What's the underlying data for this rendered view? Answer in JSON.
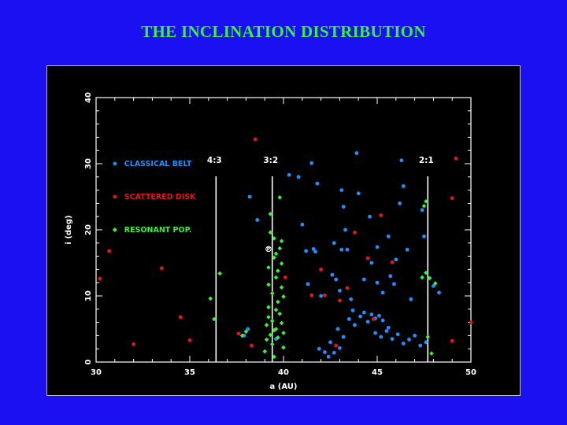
{
  "title": "THE INCLINATION DISTRIBUTION",
  "chart_data": {
    "type": "scatter",
    "xlabel": "a (AU)",
    "ylabel": "i (deg)",
    "xlim": [
      30,
      50
    ],
    "ylim": [
      0,
      40
    ],
    "xticks": [
      "30",
      "35",
      "40",
      "45",
      "50"
    ],
    "yticks": [
      "0",
      "10",
      "20",
      "30",
      "40"
    ],
    "grid": false,
    "legend_position": "left",
    "resonances": [
      {
        "label": "4:3",
        "a": 36.4
      },
      {
        "label": "3:2",
        "a": 39.4
      },
      {
        "label": "2:1",
        "a": 47.7
      }
    ],
    "pluto_marker": {
      "label": "P",
      "a": 39.2,
      "i": 17.1
    },
    "series": [
      {
        "name": "CLASSICAL BELT",
        "color": "#1e90ff",
        "marker": "circle",
        "points": [
          [
            31.0,
            30.0
          ],
          [
            37.9,
            4.0
          ],
          [
            38.1,
            5.0
          ],
          [
            38.2,
            25.0
          ],
          [
            38.6,
            21.5
          ],
          [
            39.6,
            3.5
          ],
          [
            40.3,
            28.3
          ],
          [
            40.8,
            28.0
          ],
          [
            41.0,
            20.8
          ],
          [
            41.2,
            16.8
          ],
          [
            41.3,
            11.8
          ],
          [
            41.5,
            30.1
          ],
          [
            41.6,
            17.1
          ],
          [
            41.7,
            16.7
          ],
          [
            41.8,
            27.0
          ],
          [
            42.0,
            10.0
          ],
          [
            41.9,
            2.0
          ],
          [
            42.2,
            1.5
          ],
          [
            42.5,
            3.0
          ],
          [
            42.6,
            13.2
          ],
          [
            42.7,
            18.0
          ],
          [
            42.8,
            12.5
          ],
          [
            42.9,
            5.0
          ],
          [
            43.0,
            10.8
          ],
          [
            43.1,
            26.0
          ],
          [
            43.2,
            23.5
          ],
          [
            43.3,
            20.0
          ],
          [
            43.1,
            17.0
          ],
          [
            43.4,
            17.0
          ],
          [
            43.6,
            9.5
          ],
          [
            43.9,
            31.6
          ],
          [
            44.0,
            25.5
          ],
          [
            44.3,
            12.5
          ],
          [
            44.6,
            22.0
          ],
          [
            44.7,
            15.0
          ],
          [
            45.0,
            17.4
          ],
          [
            45.0,
            12.0
          ],
          [
            45.3,
            10.5
          ],
          [
            45.6,
            19.0
          ],
          [
            45.7,
            13.0
          ],
          [
            45.9,
            11.8
          ],
          [
            46.0,
            15.5
          ],
          [
            46.2,
            24.0
          ],
          [
            46.3,
            30.5
          ],
          [
            46.4,
            26.6
          ],
          [
            46.6,
            17.0
          ],
          [
            46.8,
            9.5
          ],
          [
            47.0,
            4.0
          ],
          [
            47.3,
            2.5
          ],
          [
            47.4,
            23.0
          ],
          [
            47.5,
            19.0
          ],
          [
            47.6,
            3.0
          ],
          [
            48.0,
            11.5
          ],
          [
            48.3,
            10.5
          ],
          [
            44.9,
            4.4
          ],
          [
            45.2,
            3.8
          ],
          [
            45.5,
            4.7
          ],
          [
            45.8,
            3.5
          ],
          [
            46.1,
            4.2
          ],
          [
            46.4,
            2.8
          ],
          [
            46.7,
            3.4
          ],
          [
            42.4,
            0.8
          ],
          [
            42.7,
            1.4
          ],
          [
            43.0,
            2.1
          ],
          [
            43.2,
            3.8
          ],
          [
            43.5,
            6.5
          ],
          [
            43.7,
            7.8
          ],
          [
            43.8,
            5.6
          ],
          [
            44.1,
            6.9
          ],
          [
            44.3,
            7.5
          ],
          [
            44.5,
            6.1
          ],
          [
            44.7,
            7.2
          ],
          [
            44.9,
            6.6
          ],
          [
            45.1,
            7.0
          ],
          [
            45.3,
            6.3
          ],
          [
            45.6,
            5.2
          ]
        ]
      },
      {
        "name": "SCATTERED DISK",
        "color": "#e8131e",
        "marker": "circle",
        "points": [
          [
            30.2,
            12.6
          ],
          [
            30.7,
            16.8
          ],
          [
            32.0,
            2.7
          ],
          [
            33.5,
            14.2
          ],
          [
            34.5,
            6.8
          ],
          [
            35.0,
            3.3
          ],
          [
            37.6,
            4.3
          ],
          [
            38.3,
            2.5
          ],
          [
            38.5,
            33.7
          ],
          [
            40.1,
            12.8
          ],
          [
            41.5,
            10.1
          ],
          [
            42.0,
            14.0
          ],
          [
            42.2,
            10.1
          ],
          [
            43.0,
            9.3
          ],
          [
            43.4,
            11.2
          ],
          [
            43.8,
            19.6
          ],
          [
            44.5,
            15.7
          ],
          [
            44.8,
            6.5
          ],
          [
            45.2,
            22.2
          ],
          [
            45.8,
            15.1
          ],
          [
            49.0,
            24.8
          ],
          [
            49.2,
            30.8
          ],
          [
            49.0,
            3.2
          ],
          [
            50.0,
            6.0
          ],
          [
            42.8,
            2.5
          ]
        ]
      },
      {
        "name": "RESONANT POP.",
        "color": "#39f23a",
        "marker": "diamond",
        "points": [
          [
            36.1,
            9.6
          ],
          [
            36.3,
            6.5
          ],
          [
            36.6,
            13.4
          ],
          [
            37.8,
            4.0
          ],
          [
            38.0,
            4.6
          ],
          [
            39.0,
            1.6
          ],
          [
            39.1,
            3.4
          ],
          [
            39.1,
            5.6
          ],
          [
            39.2,
            8.3
          ],
          [
            39.2,
            11.7
          ],
          [
            39.2,
            14.3
          ],
          [
            39.3,
            19.6
          ],
          [
            39.3,
            22.4
          ],
          [
            39.4,
            2.7
          ],
          [
            39.4,
            6.2
          ],
          [
            39.4,
            10.4
          ],
          [
            39.5,
            15.8
          ],
          [
            39.5,
            18.7
          ],
          [
            39.5,
            0.8
          ],
          [
            39.5,
            4.8
          ],
          [
            39.6,
            7.9
          ],
          [
            39.6,
            12.8
          ],
          [
            39.6,
            16.4
          ],
          [
            39.7,
            3.7
          ],
          [
            39.7,
            9.1
          ],
          [
            39.7,
            13.8
          ],
          [
            39.8,
            24.9
          ],
          [
            39.8,
            17.2
          ],
          [
            39.9,
            5.9
          ],
          [
            39.9,
            11.3
          ],
          [
            39.9,
            14.9
          ],
          [
            39.9,
            18.3
          ],
          [
            40.0,
            2.2
          ],
          [
            40.0,
            9.9
          ],
          [
            40.0,
            4.4
          ],
          [
            39.2,
            6.8
          ],
          [
            39.3,
            4.1
          ],
          [
            39.6,
            5.0
          ],
          [
            39.8,
            7.3
          ],
          [
            47.4,
            12.8
          ],
          [
            47.5,
            23.6
          ],
          [
            47.6,
            24.3
          ],
          [
            47.6,
            13.5
          ],
          [
            47.7,
            3.8
          ],
          [
            47.8,
            12.7
          ],
          [
            47.9,
            1.3
          ],
          [
            48.1,
            11.9
          ]
        ]
      }
    ]
  }
}
